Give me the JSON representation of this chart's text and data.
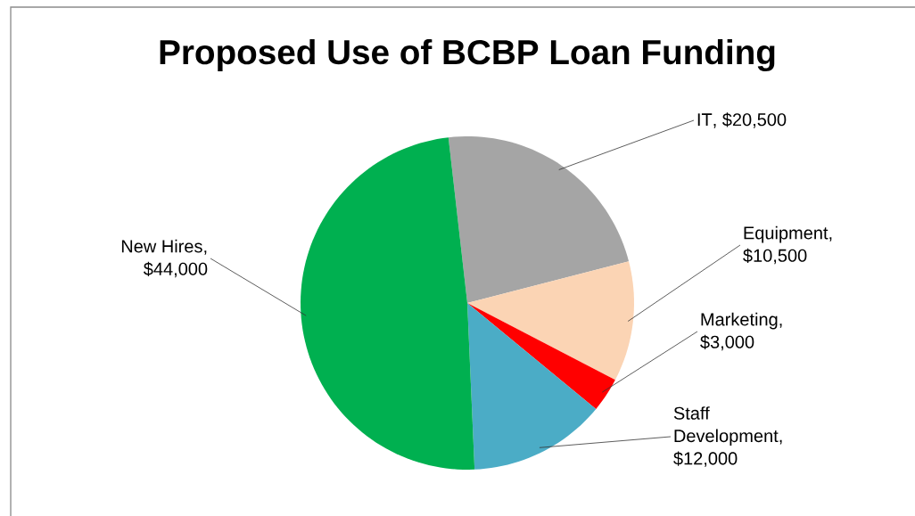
{
  "chart_data": {
    "type": "pie",
    "title": "Proposed Use of BCBP Loan Funding",
    "categories": [
      "IT",
      "Equipment",
      "Marketing",
      "Staff Development",
      "New Hires"
    ],
    "values": [
      20500,
      10500,
      3000,
      12000,
      44000
    ],
    "value_labels": [
      ", $20,500",
      ", $10,500",
      ", $3,000",
      ", $12,000",
      ", $44,000"
    ],
    "colors": [
      "#a5a5a5",
      "#fbd4b4",
      "#ff0000",
      "#4bacc6",
      "#00b050"
    ]
  }
}
